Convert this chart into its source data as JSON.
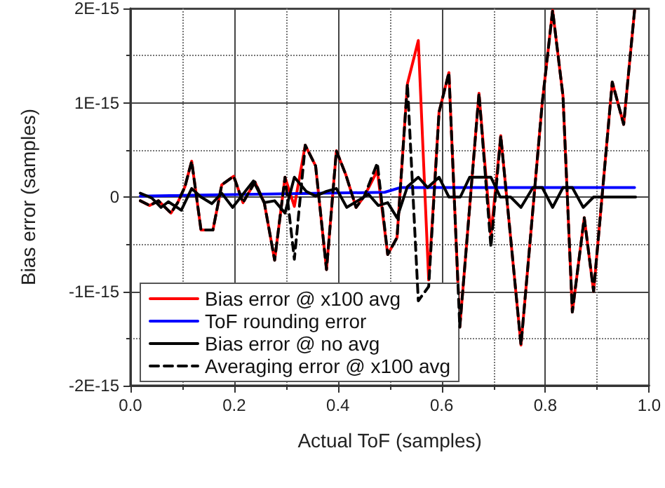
{
  "chart_data": {
    "type": "line",
    "xlabel": "Actual ToF (samples)",
    "ylabel": "Bias error (samples)",
    "xlim": [
      0,
      1
    ],
    "xticks": [
      {
        "value": 0,
        "label": "0.0"
      },
      {
        "value": 0.2,
        "label": "0.2"
      },
      {
        "value": 0.4,
        "label": "0.4"
      },
      {
        "value": 0.6,
        "label": "0.6"
      },
      {
        "value": 0.8,
        "label": "0.8"
      },
      {
        "value": 1,
        "label": "1.0"
      }
    ],
    "ylim": [
      -2e-15,
      2e-15
    ],
    "yticks": [
      {
        "value": -2e-15,
        "label": "-2E-15"
      },
      {
        "value": -1e-15,
        "label": "-1E-15"
      },
      0,
      {
        "value": 1e-15,
        "label": "1E-15"
      },
      {
        "value": 2e-15,
        "label": "2E-15"
      }
    ],
    "grid": true,
    "legend": "bottom left",
    "marker": "none",
    "series": [
      {
        "name": "Bias error @ x100 avg",
        "color": "#ff0000",
        "line_style": "solid",
        "x": [
          0.019,
          0.037,
          0.054,
          0.078,
          0.091,
          0.105,
          0.118,
          0.136,
          0.159,
          0.176,
          0.199,
          0.217,
          0.24,
          0.258,
          0.278,
          0.298,
          0.316,
          0.337,
          0.357,
          0.378,
          0.397,
          0.415,
          0.435,
          0.451,
          0.476,
          0.496,
          0.514,
          0.534,
          0.555,
          0.575,
          0.595,
          0.614,
          0.635,
          0.672,
          0.695,
          0.714,
          0.753,
          0.794,
          0.814,
          0.834,
          0.852,
          0.875,
          0.893,
          0.929,
          0.951,
          0.972
        ],
        "values": [
          -4e-17,
          -9e-17,
          -4e-17,
          -1.7e-16,
          -6e-17,
          1.1e-16,
          3.8e-16,
          -3.5e-16,
          -3.5e-16,
          1.3e-16,
          2.2e-16,
          -6e-17,
          1.6e-16,
          -6e-17,
          -6.7e-16,
          2.1e-16,
          -1e-16,
          5.5e-16,
          3.3e-16,
          -7.7e-16,
          4.9e-16,
          2.4e-16,
          -1.1e-16,
          1e-17,
          2.8e-16,
          -6.1e-16,
          -4.3e-16,
          1.2e-15,
          1.66e-15,
          -8.8e-16,
          9e-16,
          1.32e-15,
          -1.38e-15,
          1.1e-15,
          -4.1e-16,
          6.5e-16,
          -1.57e-15,
          1e-15,
          1.98e-15,
          1.07e-15,
          -1.22e-15,
          -2.2e-16,
          -1e-15,
          1.22e-15,
          7.7e-16,
          1.98e-15
        ]
      },
      {
        "name": "ToF rounding error",
        "color": "#0000ff",
        "line_style": "solid",
        "x": [
          0.019,
          0.49,
          0.52,
          0.972
        ],
        "values": [
          1e-17,
          5e-17,
          1e-16,
          1e-16
        ]
      },
      {
        "name": "Bias error @ no avg",
        "color": "#000000",
        "line_style": "solid",
        "x": [
          0.019,
          0.041,
          0.059,
          0.073,
          0.098,
          0.118,
          0.136,
          0.157,
          0.176,
          0.197,
          0.217,
          0.237,
          0.258,
          0.278,
          0.298,
          0.316,
          0.339,
          0.357,
          0.378,
          0.397,
          0.417,
          0.438,
          0.459,
          0.478,
          0.496,
          0.514,
          0.534,
          0.555,
          0.573,
          0.595,
          0.614,
          0.636,
          0.654,
          0.695,
          0.713,
          0.733,
          0.753,
          0.776,
          0.794,
          0.814,
          0.834,
          0.852,
          0.873,
          0.893,
          0.974
        ],
        "values": [
          4e-17,
          -1e-17,
          -1.1e-16,
          -5e-17,
          -1.4e-16,
          9e-17,
          0,
          -7e-17,
          4e-17,
          -1.1e-16,
          3e-17,
          1.7e-16,
          -6e-17,
          -4e-17,
          -1.7e-16,
          2.1e-16,
          6e-17,
          1e-17,
          6e-17,
          9e-17,
          -1.1e-16,
          -4e-17,
          3e-17,
          -9e-17,
          -6e-17,
          -2.2e-16,
          1.1e-16,
          2.1e-16,
          1e-16,
          2.1e-16,
          0,
          0,
          2.1e-16,
          2.1e-16,
          0,
          0,
          -1.1e-16,
          1e-16,
          1e-16,
          -1.1e-16,
          1e-16,
          1e-16,
          -1.1e-16,
          0,
          0
        ]
      },
      {
        "name": "Averaging error @ x100 avg",
        "color": "#000000",
        "line_style": "dashed",
        "x": [
          0.019,
          0.037,
          0.054,
          0.078,
          0.091,
          0.105,
          0.118,
          0.136,
          0.159,
          0.176,
          0.199,
          0.217,
          0.24,
          0.258,
          0.278,
          0.298,
          0.316,
          0.337,
          0.357,
          0.378,
          0.397,
          0.415,
          0.435,
          0.451,
          0.476,
          0.496,
          0.514,
          0.534,
          0.555,
          0.575,
          0.595,
          0.614,
          0.635,
          0.672,
          0.695,
          0.714,
          0.753,
          0.794,
          0.814,
          0.834,
          0.852,
          0.875,
          0.893,
          0.929,
          0.951,
          0.972
        ],
        "values": [
          -4e-17,
          -9e-17,
          -4e-17,
          -1.7e-16,
          -6e-17,
          1.1e-16,
          3.8e-16,
          -3.5e-16,
          -3.5e-16,
          1.3e-16,
          2.2e-16,
          -6e-17,
          1.6e-16,
          -6e-17,
          -6.7e-16,
          2.1e-16,
          -6.6e-16,
          5.5e-16,
          3.3e-16,
          -7.7e-16,
          4.9e-16,
          2.4e-16,
          -1.1e-16,
          1e-17,
          3.6e-16,
          -6.1e-16,
          -4.3e-16,
          1.2e-15,
          -1.1e-15,
          -9.5e-16,
          9e-16,
          1.32e-15,
          -1.38e-15,
          1.1e-15,
          -5.3e-16,
          6.5e-16,
          -1.57e-15,
          1e-15,
          1.98e-15,
          1.07e-15,
          -1.22e-15,
          -2.2e-16,
          -1e-15,
          1.22e-15,
          7.7e-16,
          1.98e-15
        ]
      }
    ]
  }
}
